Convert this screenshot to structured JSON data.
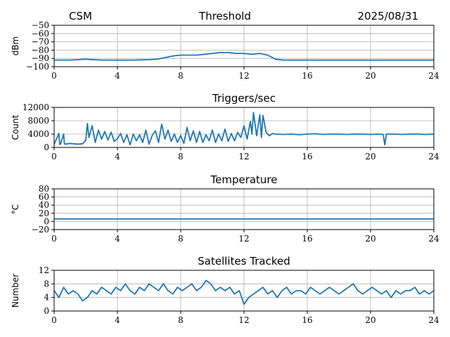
{
  "header": {
    "left": "CSM",
    "center": "Threshold",
    "right": "2025/08/31"
  },
  "colors": {
    "line": "#1f77b4",
    "grid": "#b0b0b0",
    "axis": "#000000"
  },
  "chart_data": [
    {
      "type": "line",
      "title": "",
      "ylabel": "dBm",
      "xlim": [
        0,
        24
      ],
      "ylim": [
        -100,
        -50
      ],
      "xticks": [
        0,
        4,
        8,
        12,
        16,
        20,
        24
      ],
      "yticks": [
        -100,
        -90,
        -80,
        -70,
        -60,
        -50
      ],
      "grid": true,
      "series": [
        {
          "x": [
            0,
            1,
            2,
            3,
            4,
            5,
            6,
            6.5,
            7,
            7.5,
            8,
            8.5,
            9,
            9.5,
            10,
            10.5,
            11,
            11.5,
            12,
            12.5,
            13,
            13.5,
            14,
            14.5,
            15,
            16,
            17,
            18,
            19,
            20,
            21,
            22,
            23,
            24
          ],
          "y": [
            -92,
            -92,
            -91,
            -92,
            -92,
            -92,
            -91.5,
            -91,
            -89,
            -87,
            -86,
            -86,
            -86,
            -85,
            -84,
            -83,
            -83,
            -84,
            -84,
            -85,
            -84,
            -86,
            -91,
            -92,
            -92,
            -92,
            -92,
            -92,
            -92,
            -92,
            -92,
            -92,
            -92,
            -92
          ]
        }
      ]
    },
    {
      "type": "line",
      "title": "Triggers/sec",
      "ylabel": "Count",
      "xlim": [
        0,
        24
      ],
      "ylim": [
        0,
        12000
      ],
      "xticks": [
        0,
        4,
        8,
        12,
        16,
        20,
        24
      ],
      "yticks": [
        0,
        4000,
        8000,
        12000
      ],
      "grid": true,
      "series": [
        {
          "x": [
            0,
            0.3,
            0.35,
            0.4,
            0.6,
            0.65,
            0.7,
            1.0,
            1.5,
            1.8,
            2.0,
            2.1,
            2.2,
            2.4,
            2.6,
            2.8,
            3.0,
            3.2,
            3.4,
            3.6,
            3.8,
            4.0,
            4.2,
            4.4,
            4.6,
            4.8,
            5.0,
            5.2,
            5.4,
            5.6,
            5.8,
            6.0,
            6.2,
            6.4,
            6.6,
            6.8,
            7.0,
            7.2,
            7.4,
            7.6,
            7.8,
            8.0,
            8.2,
            8.4,
            8.6,
            8.8,
            9.0,
            9.2,
            9.4,
            9.6,
            9.8,
            10.0,
            10.2,
            10.4,
            10.6,
            10.8,
            11.0,
            11.2,
            11.4,
            11.6,
            11.8,
            12.0,
            12.2,
            12.4,
            12.5,
            12.6,
            12.8,
            13.0,
            13.1,
            13.2,
            13.4,
            13.6,
            13.8,
            14.0,
            14.5,
            15,
            15.5,
            16,
            16.5,
            17,
            17.5,
            18,
            18.5,
            19,
            19.5,
            20,
            20.5,
            20.8,
            20.9,
            21.0,
            21.5,
            22,
            22.5,
            23,
            23.5,
            24
          ],
          "y": [
            1000,
            4200,
            900,
            1000,
            4000,
            1100,
            1000,
            1200,
            1000,
            1100,
            2200,
            7200,
            3000,
            6500,
            1500,
            5200,
            2500,
            4800,
            2200,
            4600,
            1800,
            2600,
            4200,
            1500,
            3800,
            800,
            4000,
            2000,
            3800,
            1500,
            5200,
            1000,
            3600,
            5000,
            1500,
            7000,
            2500,
            5200,
            1800,
            4000,
            1500,
            3600,
            1200,
            6000,
            2000,
            5000,
            1500,
            4800,
            1500,
            3800,
            2000,
            5200,
            1500,
            4000,
            2000,
            5500,
            1800,
            4200,
            2000,
            4500,
            3000,
            6500,
            2500,
            7800,
            4000,
            10500,
            3500,
            9800,
            3000,
            9600,
            4500,
            3500,
            4200,
            4000,
            3900,
            4000,
            3800,
            4000,
            4100,
            3900,
            4000,
            4000,
            3900,
            4000,
            4000,
            3900,
            4000,
            3900,
            800,
            4000,
            4000,
            3900,
            4000,
            4000,
            3900,
            4000
          ]
        }
      ]
    },
    {
      "type": "line",
      "title": "Temperature",
      "ylabel": "°C",
      "xlim": [
        0,
        24
      ],
      "ylim": [
        -20,
        80
      ],
      "xticks": [
        0,
        4,
        8,
        12,
        16,
        20,
        24
      ],
      "yticks": [
        -20,
        0,
        20,
        40,
        60,
        80
      ],
      "grid": true,
      "series": [
        {
          "x": [
            0,
            24
          ],
          "y": [
            6,
            6
          ]
        }
      ]
    },
    {
      "type": "line",
      "title": "Satellites Tracked",
      "ylabel": "Number",
      "xlim": [
        0,
        24
      ],
      "ylim": [
        0,
        12
      ],
      "xticks": [
        0,
        4,
        8,
        12,
        16,
        20,
        24
      ],
      "yticks": [
        0,
        4,
        8,
        12
      ],
      "grid": true,
      "series": [
        {
          "x": [
            0,
            0.3,
            0.6,
            0.9,
            1.2,
            1.5,
            1.8,
            2.1,
            2.4,
            2.7,
            3.0,
            3.3,
            3.6,
            3.9,
            4.2,
            4.5,
            4.8,
            5.1,
            5.4,
            5.7,
            6.0,
            6.3,
            6.6,
            6.9,
            7.2,
            7.5,
            7.8,
            8.1,
            8.4,
            8.7,
            9.0,
            9.3,
            9.6,
            9.9,
            10.2,
            10.5,
            10.8,
            11.1,
            11.4,
            11.7,
            12.0,
            12.3,
            12.6,
            12.9,
            13.2,
            13.5,
            13.8,
            14.1,
            14.4,
            14.7,
            15.0,
            15.3,
            15.6,
            15.9,
            16.2,
            16.5,
            16.8,
            17.1,
            17.4,
            17.7,
            18.0,
            18.3,
            18.6,
            18.9,
            19.2,
            19.5,
            19.8,
            20.1,
            20.4,
            20.7,
            21.0,
            21.3,
            21.6,
            21.9,
            22.2,
            22.5,
            22.8,
            23.1,
            23.4,
            23.7,
            24
          ],
          "y": [
            6,
            4,
            7,
            5,
            6,
            5,
            3,
            4,
            6,
            5,
            7,
            6,
            5,
            7,
            6,
            8,
            6,
            5,
            7,
            6,
            8,
            7,
            6,
            8,
            6,
            5,
            7,
            6,
            7,
            8,
            6,
            7,
            9,
            8,
            6,
            7,
            6,
            7,
            5,
            6,
            2,
            4,
            5,
            6,
            7,
            5,
            6,
            4,
            6,
            7,
            5,
            6,
            6,
            5,
            7,
            6,
            5,
            6,
            7,
            6,
            5,
            6,
            7,
            8,
            6,
            5,
            6,
            7,
            6,
            5,
            6,
            4,
            6,
            5,
            6,
            6,
            7,
            5,
            6,
            5,
            6
          ]
        }
      ]
    }
  ]
}
